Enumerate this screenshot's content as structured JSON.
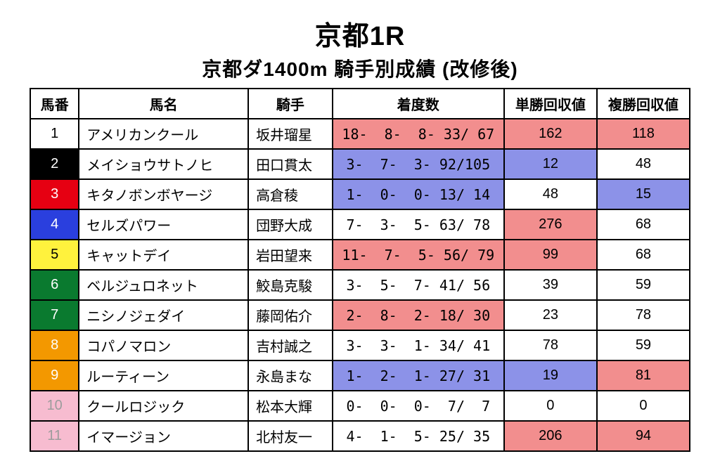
{
  "title": "京都1R",
  "subtitle": "京都ダ1400m 騎手別成績 (改修後)",
  "columns": [
    "馬番",
    "馬名",
    "騎手",
    "着度数",
    "単勝回収値",
    "複勝回収値"
  ],
  "column_widths_class": [
    "col-num",
    "col-name",
    "col-jockey",
    "col-rec",
    "col-tan",
    "col-fuku"
  ],
  "colors": {
    "highlight_red": "#f28e8e",
    "highlight_blue": "#8c92e8",
    "num_black": {
      "bg": "#000000",
      "fg": "#ffffff"
    },
    "num_red": {
      "bg": "#e60012",
      "fg": "#ffffff"
    },
    "num_blue": {
      "bg": "#2a3fde",
      "fg": "#ffffff"
    },
    "num_yellow": {
      "bg": "#fff23d",
      "fg": "#000000"
    },
    "num_green": {
      "bg": "#0a7a2f",
      "fg": "#ffffff"
    },
    "num_orange": {
      "bg": "#f39800",
      "fg": "#ffffff"
    },
    "num_pink": {
      "bg": "#f7bcd0",
      "fg": "#9c9c9c"
    },
    "num_white": {
      "bg": "#ffffff",
      "fg": "#000000"
    }
  },
  "rows": [
    {
      "num": "1",
      "num_color": "num_white",
      "name": "アメリカンクール",
      "jockey": "坂井瑠星",
      "record": "18-  8-  8- 33/ 67",
      "record_hl": "highlight_red",
      "tansho": "162",
      "tansho_hl": "highlight_red",
      "fukusho": "118",
      "fukusho_hl": "highlight_red"
    },
    {
      "num": "2",
      "num_color": "num_black",
      "name": "メイショウサトノヒ",
      "jockey": "田口貫太",
      "record": "3-  7-  3- 92/105",
      "record_hl": "highlight_blue",
      "tansho": "12",
      "tansho_hl": "highlight_blue",
      "fukusho": "48",
      "fukusho_hl": null
    },
    {
      "num": "3",
      "num_color": "num_red",
      "name": "キタノボンボヤージ",
      "jockey": "高倉稜",
      "record": "1-  0-  0- 13/ 14",
      "record_hl": "highlight_blue",
      "tansho": "48",
      "tansho_hl": null,
      "fukusho": "15",
      "fukusho_hl": "highlight_blue"
    },
    {
      "num": "4",
      "num_color": "num_blue",
      "name": "セルズパワー",
      "jockey": "団野大成",
      "record": "7-  3-  5- 63/ 78",
      "record_hl": null,
      "tansho": "276",
      "tansho_hl": "highlight_red",
      "fukusho": "68",
      "fukusho_hl": null
    },
    {
      "num": "5",
      "num_color": "num_yellow",
      "name": "キャットデイ",
      "jockey": "岩田望来",
      "record": "11-  7-  5- 56/ 79",
      "record_hl": "highlight_red",
      "tansho": "99",
      "tansho_hl": "highlight_red",
      "fukusho": "68",
      "fukusho_hl": null
    },
    {
      "num": "6",
      "num_color": "num_green",
      "name": "ベルジュロネット",
      "jockey": "鮫島克駿",
      "record": "3-  5-  7- 41/ 56",
      "record_hl": null,
      "tansho": "39",
      "tansho_hl": null,
      "fukusho": "59",
      "fukusho_hl": null
    },
    {
      "num": "7",
      "num_color": "num_green",
      "name": "ニシノジェダイ",
      "jockey": "藤岡佑介",
      "record": "2-  8-  2- 18/ 30",
      "record_hl": "highlight_red",
      "tansho": "23",
      "tansho_hl": null,
      "fukusho": "78",
      "fukusho_hl": null
    },
    {
      "num": "8",
      "num_color": "num_orange",
      "name": "コパノマロン",
      "jockey": "吉村誠之",
      "record": "3-  3-  1- 34/ 41",
      "record_hl": null,
      "tansho": "78",
      "tansho_hl": null,
      "fukusho": "59",
      "fukusho_hl": null
    },
    {
      "num": "9",
      "num_color": "num_orange",
      "name": "ルーティーン",
      "jockey": "永島まな",
      "record": "1-  2-  1- 27/ 31",
      "record_hl": "highlight_blue",
      "tansho": "19",
      "tansho_hl": "highlight_blue",
      "fukusho": "81",
      "fukusho_hl": "highlight_red"
    },
    {
      "num": "10",
      "num_color": "num_pink",
      "name": "クールロジック",
      "jockey": "松本大輝",
      "record": "0-  0-  0-  7/  7",
      "record_hl": null,
      "tansho": "0",
      "tansho_hl": null,
      "fukusho": "0",
      "fukusho_hl": null
    },
    {
      "num": "11",
      "num_color": "num_pink",
      "name": "イマージョン",
      "jockey": "北村友一",
      "record": "4-  1-  5- 25/ 35",
      "record_hl": null,
      "tansho": "206",
      "tansho_hl": "highlight_red",
      "fukusho": "94",
      "fukusho_hl": "highlight_red"
    }
  ]
}
